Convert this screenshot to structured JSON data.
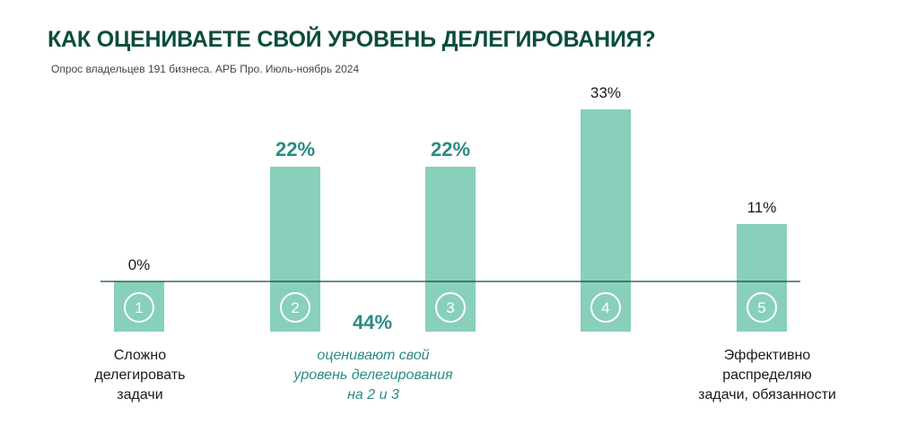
{
  "header": {
    "title": "КАК ОЦЕНИВАЕТЕ СВОЙ УРОВЕНЬ ДЕЛЕГИРОВАНИЯ?",
    "subtitle": "Опрос владельцев 191 бизнеса. АРБ Про. Июль-ноябрь 2024"
  },
  "chart_data": {
    "type": "bar",
    "categories": [
      "1",
      "2",
      "3",
      "4",
      "5"
    ],
    "values": [
      0,
      22,
      22,
      33,
      11
    ],
    "value_labels": [
      "0%",
      "22%",
      "22%",
      "33%",
      "11%"
    ],
    "highlighted": [
      false,
      true,
      true,
      false,
      false
    ],
    "ylim": [
      0,
      33
    ],
    "grid": false,
    "colors": {
      "bar": "#88d0bb",
      "highlight_label": "#2a8a86",
      "label": "#1a1a1a",
      "baseline": "#0b4d3c",
      "circle": "#ffffff"
    }
  },
  "annotations": {
    "left_caption": [
      "Сложно",
      "делегировать",
      "задачи"
    ],
    "right_caption": [
      "Эффективно",
      "распределяю",
      "задачи, обязанности"
    ],
    "middle_percent": "44%",
    "middle_caption": [
      "оценивают свой",
      "уровень делегирования",
      "на 2 и 3"
    ]
  }
}
